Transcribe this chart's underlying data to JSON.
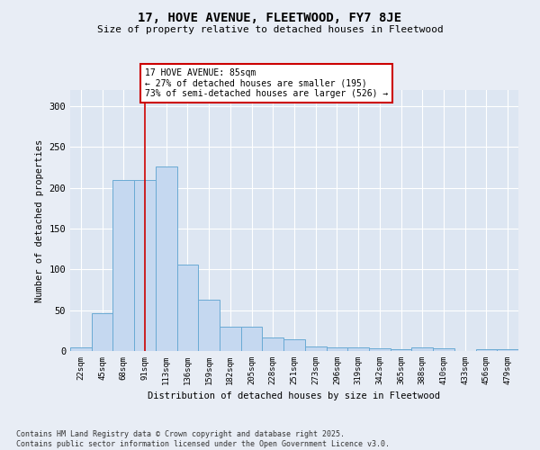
{
  "title": "17, HOVE AVENUE, FLEETWOOD, FY7 8JE",
  "subtitle": "Size of property relative to detached houses in Fleetwood",
  "xlabel": "Distribution of detached houses by size in Fleetwood",
  "ylabel": "Number of detached properties",
  "categories": [
    "22sqm",
    "45sqm",
    "68sqm",
    "91sqm",
    "113sqm",
    "136sqm",
    "159sqm",
    "182sqm",
    "205sqm",
    "228sqm",
    "251sqm",
    "273sqm",
    "296sqm",
    "319sqm",
    "342sqm",
    "365sqm",
    "388sqm",
    "410sqm",
    "433sqm",
    "456sqm",
    "479sqm"
  ],
  "values": [
    4,
    46,
    210,
    210,
    226,
    106,
    63,
    30,
    30,
    17,
    14,
    6,
    4,
    4,
    3,
    2,
    4,
    3,
    0,
    2,
    2
  ],
  "bar_color": "#c5d8f0",
  "bar_edge_color": "#6aaad4",
  "background_color": "#dde6f2",
  "grid_color": "#ffffff",
  "red_line_x": 3.0,
  "annotation_text": "17 HOVE AVENUE: 85sqm\n← 27% of detached houses are smaller (195)\n73% of semi-detached houses are larger (526) →",
  "annotation_box_color": "#ffffff",
  "annotation_box_edge": "#cc0000",
  "ylim": [
    0,
    320
  ],
  "yticks": [
    0,
    50,
    100,
    150,
    200,
    250,
    300
  ],
  "footer": "Contains HM Land Registry data © Crown copyright and database right 2025.\nContains public sector information licensed under the Open Government Licence v3.0."
}
